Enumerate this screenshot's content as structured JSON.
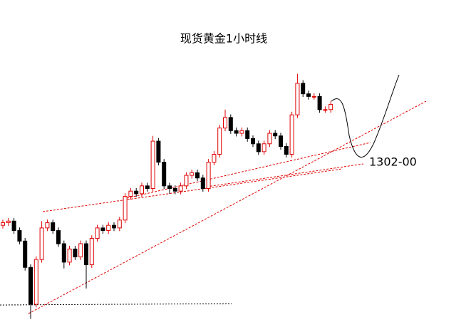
{
  "chart_data": {
    "type": "candlestick",
    "title": "现货黄金1小时线",
    "annotation": "1302-00",
    "ylim": [
      1272,
      1322
    ],
    "up_color": "#e00000",
    "down_color": "#000000",
    "open": [
      1290.0,
      1290.5,
      1290.8,
      1289.0,
      1287.0,
      1282.0,
      1275.0,
      1283.5,
      1289.5,
      1290.5,
      1289.0,
      1286.5,
      1283.0,
      1285.5,
      1284.0,
      1286.5,
      1282.5,
      1287.5,
      1289.5,
      1289.0,
      1290.0,
      1289.5,
      1291.0,
      1295.5,
      1296.5,
      1296.0,
      1297.5,
      1297.0,
      1306.0,
      1302.0,
      1297.5,
      1297.0,
      1296.5,
      1297.5,
      1299.5,
      1300.0,
      1299.0,
      1297.0,
      1302.0,
      1303.5,
      1308.5,
      1310.5,
      1308.0,
      1307.5,
      1308.0,
      1306.5,
      1305.5,
      1304.0,
      1305.5,
      1307.5,
      1307.0,
      1305.0,
      1303.5,
      1311.0,
      1317.0,
      1315.0,
      1314.5,
      1314.5,
      1312.0,
      1312.0
    ],
    "high": [
      1291.1,
      1291.4,
      1291.4,
      1289.6,
      1287.6,
      1282.6,
      1284.1,
      1290.8,
      1291.1,
      1291.1,
      1289.6,
      1287.1,
      1286.1,
      1286.1,
      1287.1,
      1287.1,
      1288.1,
      1290.1,
      1290.1,
      1290.6,
      1290.6,
      1291.6,
      1296.1,
      1297.1,
      1297.1,
      1298.1,
      1298.1,
      1307.0,
      1306.6,
      1302.6,
      1298.1,
      1297.6,
      1298.1,
      1300.1,
      1300.6,
      1300.6,
      1299.6,
      1302.6,
      1304.1,
      1309.1,
      1312.0,
      1311.1,
      1308.6,
      1308.6,
      1308.6,
      1307.1,
      1306.1,
      1306.1,
      1308.1,
      1308.1,
      1307.6,
      1305.6,
      1311.6,
      1318.8,
      1317.6,
      1315.6,
      1315.1,
      1315.1,
      1312.6,
      1313.6
    ],
    "low": [
      1289.4,
      1289.9,
      1288.4,
      1286.4,
      1281.4,
      1272.2,
      1274.4,
      1282.9,
      1288.9,
      1288.4,
      1285.9,
      1281.8,
      1282.4,
      1283.4,
      1283.4,
      1278.0,
      1281.9,
      1286.9,
      1288.4,
      1288.4,
      1288.9,
      1288.9,
      1290.4,
      1294.9,
      1295.4,
      1295.4,
      1296.4,
      1296.4,
      1301.4,
      1296.9,
      1296.0,
      1295.9,
      1295.9,
      1296.9,
      1298.9,
      1298.4,
      1296.4,
      1296.4,
      1301.4,
      1302.9,
      1307.9,
      1307.4,
      1306.9,
      1306.9,
      1305.9,
      1304.9,
      1303.4,
      1303.4,
      1304.9,
      1306.4,
      1304.4,
      1302.9,
      1302.9,
      1310.4,
      1314.4,
      1313.9,
      1313.9,
      1311.4,
      1311.4,
      1311.4
    ],
    "close": [
      1290.5,
      1290.8,
      1289.0,
      1287.0,
      1282.0,
      1275.0,
      1283.5,
      1289.5,
      1290.5,
      1289.0,
      1286.5,
      1283.0,
      1285.5,
      1284.0,
      1286.5,
      1282.5,
      1287.5,
      1289.5,
      1289.0,
      1290.0,
      1289.5,
      1291.0,
      1295.5,
      1296.5,
      1296.0,
      1297.5,
      1297.0,
      1306.0,
      1302.0,
      1297.5,
      1297.0,
      1296.5,
      1297.5,
      1299.5,
      1300.0,
      1299.0,
      1297.0,
      1302.0,
      1303.5,
      1308.5,
      1310.5,
      1308.0,
      1307.5,
      1308.0,
      1306.5,
      1305.5,
      1304.0,
      1305.5,
      1307.5,
      1307.0,
      1305.0,
      1303.5,
      1311.0,
      1317.0,
      1315.0,
      1314.5,
      1314.5,
      1312.0,
      1312.0,
      1313.0
    ]
  }
}
